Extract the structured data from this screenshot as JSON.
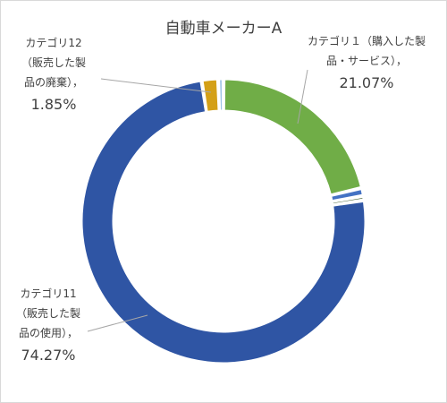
{
  "chart_data": {
    "type": "pie",
    "variant": "doughnut",
    "title": "自動車メーカーA",
    "start_angle_deg": 0,
    "direction": "clockwise",
    "slices": [
      {
        "category": "カテゴリ１（購入した製品・サービス）",
        "percent": 21.07,
        "color": "#70ad47",
        "label_lines": [
          "カテゴリ１（購入した製",
          "品・サービス），"
        ],
        "value_label": "21.07%"
      },
      {
        "category": "",
        "percent": 0.9,
        "color": "#4472c4"
      },
      {
        "category": "",
        "percent": 0.5,
        "color": "#375623"
      },
      {
        "category": "カテゴリ11（販売した製品の使用）",
        "percent": 74.27,
        "color": "#2f55a4",
        "label_lines": [
          "カテゴリ11",
          "（販売した製",
          "品の使用），"
        ],
        "value_label": "74.27%"
      },
      {
        "category": "カテゴリ12（販売した製品の廃棄）",
        "percent": 1.85,
        "color": "#d4a017",
        "label_lines": [
          "カテゴリ12",
          "（販売した製",
          "品の廃棄），"
        ],
        "value_label": "1.85%"
      },
      {
        "category": "",
        "percent": 0.6,
        "color": "#9dc3e6"
      }
    ],
    "legend": "none"
  }
}
